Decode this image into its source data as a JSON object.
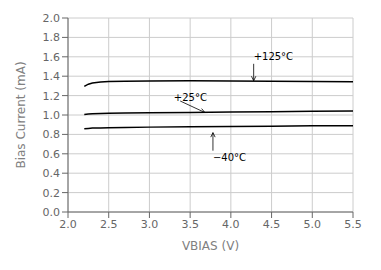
{
  "chart_data": {
    "type": "line",
    "xlabel": "VBIAS (V)",
    "ylabel": "Bias Current (mA)",
    "xlim": [
      2.0,
      5.5
    ],
    "ylim": [
      0,
      2.0
    ],
    "xticks": [
      {
        "value": 2.0,
        "label": "2.0"
      },
      2.5,
      {
        "value": 3.0,
        "label": "3.0"
      },
      3.5,
      {
        "value": 4.0,
        "label": "4.0"
      },
      4.5,
      {
        "value": 5.0,
        "label": "5.0"
      },
      5.5
    ],
    "yticks": [
      {
        "value": 0,
        "label": "0.0"
      },
      0.2,
      0.4,
      0.6,
      0.8,
      {
        "value": 1.0,
        "label": "1.0"
      },
      1.2,
      1.4,
      1.6,
      1.8,
      {
        "value": 2.0,
        "label": "2.0"
      }
    ],
    "grid": true,
    "x": [
      2.2,
      2.25,
      2.3,
      2.4,
      2.5,
      2.7,
      3.0,
      3.5,
      4.0,
      4.5,
      5.0,
      5.5
    ],
    "series": [
      {
        "name": "+125°C",
        "color": "#000000",
        "values": [
          1.295,
          1.318,
          1.33,
          1.34,
          1.345,
          1.348,
          1.35,
          1.352,
          1.35,
          1.348,
          1.346,
          1.344
        ],
        "annotation": {
          "x": 4.28,
          "y": 1.6,
          "arrow_x": 4.28,
          "arrow_y": 1.353
        }
      },
      {
        "name": "+25°C",
        "color": "#000000",
        "values": [
          1.005,
          1.01,
          1.013,
          1.016,
          1.018,
          1.02,
          1.022,
          1.026,
          1.03,
          1.034,
          1.038,
          1.042
        ],
        "annotation": {
          "x": 3.3,
          "y": 1.175,
          "arrow_x": 3.68,
          "arrow_y": 1.026
        }
      },
      {
        "name": "−40°C",
        "color": "#000000",
        "values": [
          0.858,
          0.862,
          0.865,
          0.867,
          0.869,
          0.872,
          0.875,
          0.878,
          0.882,
          0.885,
          0.888,
          0.89
        ],
        "annotation": {
          "x": 3.78,
          "y": 0.56,
          "arrow_x": 3.78,
          "arrow_y": 0.818
        }
      }
    ]
  }
}
